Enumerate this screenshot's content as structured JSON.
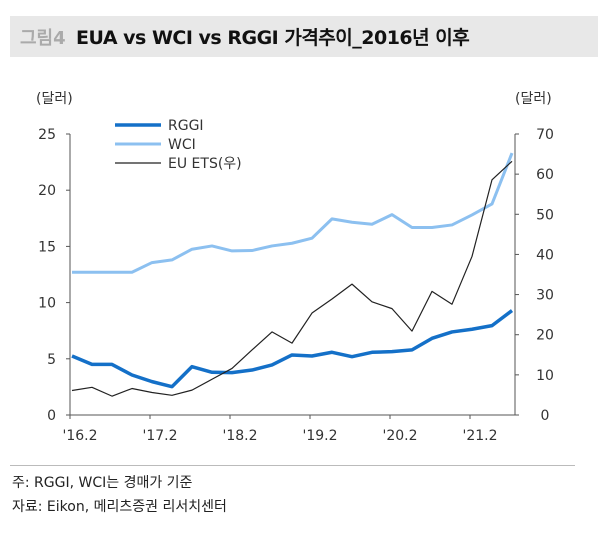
{
  "title": {
    "prefix": "그림4",
    "text": "EUA vs WCI vs RGGI  가격추이_2016년  이후"
  },
  "footnotes": [
    "주: RGGI, WCI는 경매가 기준",
    "자료: Eikon,  메리츠증권  리서치센터"
  ],
  "chart_data": {
    "type": "line",
    "title": "EUA vs WCI vs RGGI  가격추이_2016년  이후",
    "ylabel": "(달러)",
    "y2label": "(달러)",
    "ylim": [
      0,
      25
    ],
    "y2lim": [
      0,
      70
    ],
    "yticks": [
      0,
      5,
      10,
      15,
      20,
      25
    ],
    "y2ticks": [
      0,
      10,
      20,
      30,
      40,
      50,
      60,
      70
    ],
    "xtick_labels": [
      "'16.2",
      "'17.2",
      "'18.2",
      "'19.2",
      "'20.2",
      "'21.2"
    ],
    "x": [
      "'16.2",
      "'16.5",
      "'16.8",
      "'16.11",
      "'17.2",
      "'17.5",
      "'17.8",
      "'17.11",
      "'18.2",
      "'18.5",
      "'18.8",
      "'18.11",
      "'19.2",
      "'19.5",
      "'19.8",
      "'19.11",
      "'20.2",
      "'20.5",
      "'20.8",
      "'20.11",
      "'21.2",
      "'21.5",
      "'21.8"
    ],
    "legend": "top-left",
    "grid": false,
    "series": [
      {
        "name": "RGGI",
        "axis": "left",
        "color": "#1470c8",
        "values": [
          5.25,
          4.5,
          4.5,
          3.56,
          2.97,
          2.52,
          4.3,
          3.8,
          3.77,
          4.0,
          4.45,
          5.34,
          5.25,
          5.58,
          5.19,
          5.58,
          5.64,
          5.79,
          6.82,
          7.39,
          7.63,
          7.95,
          9.29
        ]
      },
      {
        "name": "WCI",
        "axis": "left",
        "color": "#8cc0f0",
        "values": [
          12.7,
          12.7,
          12.7,
          12.7,
          13.56,
          13.8,
          14.75,
          15.04,
          14.6,
          14.63,
          15.04,
          15.28,
          15.73,
          17.45,
          17.15,
          16.97,
          17.83,
          16.68,
          16.68,
          16.91,
          17.8,
          18.78,
          23.3
        ]
      },
      {
        "name": "EU ETS(우)",
        "axis": "right",
        "color": "#222222",
        "values": [
          6.1,
          6.9,
          4.7,
          6.6,
          5.6,
          4.9,
          6.2,
          8.9,
          11.6,
          16.2,
          20.7,
          17.9,
          25.4,
          28.9,
          32.6,
          28.2,
          26.5,
          20.9,
          30.8,
          27.6,
          39.5,
          58.6,
          63.2
        ]
      }
    ]
  }
}
